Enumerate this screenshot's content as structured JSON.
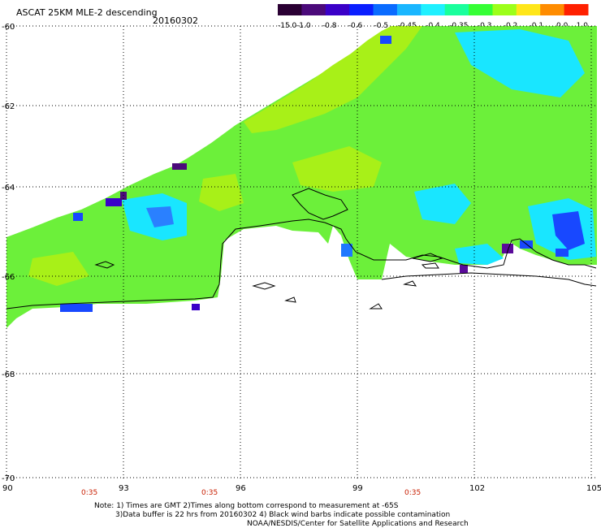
{
  "header": {
    "title": "ASCAT 25KM MLE-2 descending",
    "date": "20160302"
  },
  "colorbar": {
    "labels": [
      "-15.0",
      "-1.0",
      "-0.8",
      "-0.6",
      "-0.5",
      "-0.45",
      "-0.4",
      "-0.35",
      "-0.3",
      "-0.2",
      "-0.1",
      "0.0",
      "1.0"
    ],
    "colors": [
      "#2a0033",
      "#4b0a7a",
      "#3a00c8",
      "#0a1eff",
      "#0a6bff",
      "#19b6ff",
      "#1ff0ff",
      "#19ff9c",
      "#35ff35",
      "#9cff19",
      "#ffe619",
      "#ff8c00",
      "#ff2000"
    ]
  },
  "map": {
    "lat_labels": [
      "-60",
      "-62",
      "-64",
      "-66",
      "-68",
      "-70"
    ],
    "lon_labels": [
      "90",
      "93",
      "96",
      "99",
      "102",
      "105"
    ],
    "time_labels": [
      "0:35",
      "0:35",
      "0:35"
    ],
    "palette": {
      "ocean_green": "#6cf03a",
      "yellow_green": "#a8f018",
      "cyan": "#19e6ff",
      "blue": "#1848ff",
      "purple": "#5a0a9a"
    }
  },
  "footer": {
    "line1": "Note: 1) Times are GMT 2)Times along bottom correspond to measurement at -65S",
    "line2": "3)Data buffer is 22 hrs from 20160302 4) Black wind barbs indicate possible contamination",
    "line3": "NOAA/NESDIS/Center for Satellite Applications and Research"
  }
}
